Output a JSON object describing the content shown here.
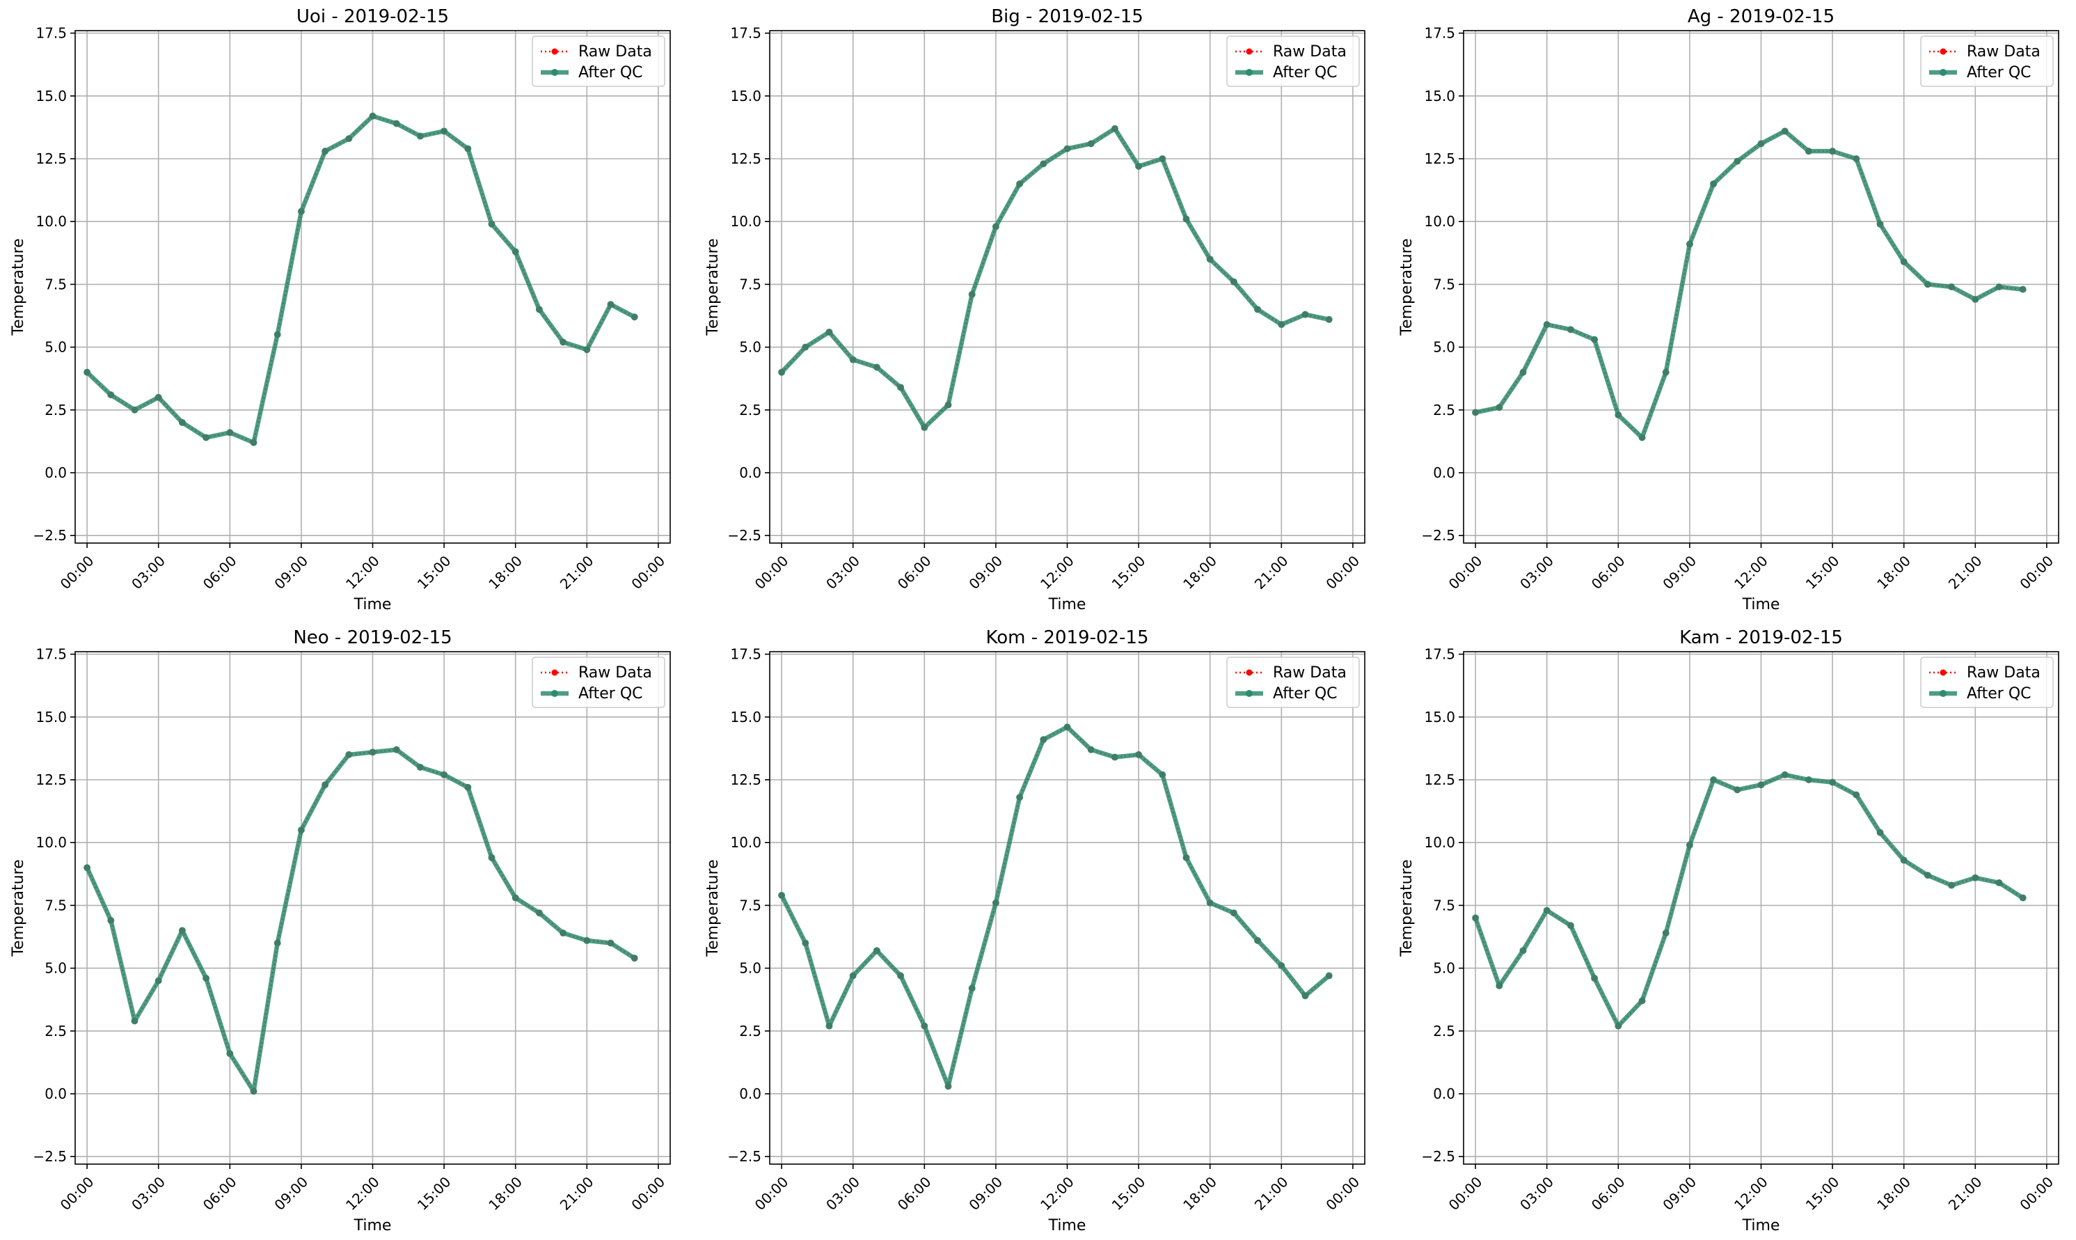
{
  "figure": {
    "background": "#ffffff"
  },
  "colors": {
    "raw": "#ff0000",
    "qc": "#2e8b6e",
    "grid": "#b0b0b0",
    "axis": "#000000"
  },
  "legend": {
    "placement": "upper-right",
    "entries": [
      "Raw Data",
      "After QC"
    ]
  },
  "chart_data": [
    {
      "type": "line",
      "title": "Uoi - 2019-02-15",
      "xlabel": "Time",
      "ylabel": "Temperature",
      "xlim": [
        -0.5,
        24.5
      ],
      "ylim": [
        -2.8,
        17.6
      ],
      "grid": true,
      "xticks": [
        0,
        3,
        6,
        9,
        12,
        15,
        18,
        21,
        24
      ],
      "xticklabels": [
        "00:00",
        "03:00",
        "06:00",
        "09:00",
        "12:00",
        "15:00",
        "18:00",
        "21:00",
        "00:00"
      ],
      "yticks": [
        -2.5,
        0,
        2.5,
        5,
        7.5,
        10,
        12.5,
        15,
        17.5
      ],
      "yticklabels": [
        "−2.5",
        "0.0",
        "2.5",
        "5.0",
        "7.5",
        "10.0",
        "12.5",
        "15.0",
        "17.5"
      ],
      "x": [
        0,
        1,
        2,
        3,
        4,
        5,
        6,
        7,
        8,
        9,
        10,
        11,
        12,
        13,
        14,
        15,
        16,
        17,
        18,
        19,
        20,
        21,
        22,
        23
      ],
      "series": [
        {
          "name": "Raw Data",
          "style": "dotted",
          "values": [
            4.0,
            3.1,
            2.5,
            3.0,
            2.0,
            1.4,
            1.6,
            1.2,
            5.5,
            10.4,
            12.8,
            13.3,
            14.2,
            13.9,
            13.4,
            13.6,
            12.9,
            9.9,
            8.8,
            6.5,
            5.2,
            4.9,
            6.7,
            6.2
          ]
        },
        {
          "name": "After QC",
          "style": "solid",
          "values": [
            4.0,
            3.1,
            2.5,
            3.0,
            2.0,
            1.4,
            1.6,
            1.2,
            5.5,
            10.4,
            12.8,
            13.3,
            14.2,
            13.9,
            13.4,
            13.6,
            12.9,
            9.9,
            8.8,
            6.5,
            5.2,
            4.9,
            6.7,
            6.2
          ]
        }
      ]
    },
    {
      "type": "line",
      "title": "Big - 2019-02-15",
      "xlabel": "Time",
      "ylabel": "Temperature",
      "xlim": [
        -0.5,
        24.5
      ],
      "ylim": [
        -2.8,
        17.6
      ],
      "grid": true,
      "xticks": [
        0,
        3,
        6,
        9,
        12,
        15,
        18,
        21,
        24
      ],
      "xticklabels": [
        "00:00",
        "03:00",
        "06:00",
        "09:00",
        "12:00",
        "15:00",
        "18:00",
        "21:00",
        "00:00"
      ],
      "yticks": [
        -2.5,
        0,
        2.5,
        5,
        7.5,
        10,
        12.5,
        15,
        17.5
      ],
      "yticklabels": [
        "−2.5",
        "0.0",
        "2.5",
        "5.0",
        "7.5",
        "10.0",
        "12.5",
        "15.0",
        "17.5"
      ],
      "x": [
        0,
        1,
        2,
        3,
        4,
        5,
        6,
        7,
        8,
        9,
        10,
        11,
        12,
        13,
        14,
        15,
        16,
        17,
        18,
        19,
        20,
        21,
        22,
        23
      ],
      "series": [
        {
          "name": "Raw Data",
          "style": "dotted",
          "values": [
            4.0,
            5.0,
            5.6,
            4.5,
            4.2,
            3.4,
            1.8,
            2.7,
            7.1,
            9.8,
            11.5,
            12.3,
            12.9,
            13.1,
            13.7,
            12.2,
            12.5,
            10.1,
            8.5,
            7.6,
            6.5,
            5.9,
            6.3,
            6.1
          ]
        },
        {
          "name": "After QC",
          "style": "solid",
          "values": [
            4.0,
            5.0,
            5.6,
            4.5,
            4.2,
            3.4,
            1.8,
            2.7,
            7.1,
            9.8,
            11.5,
            12.3,
            12.9,
            13.1,
            13.7,
            12.2,
            12.5,
            10.1,
            8.5,
            7.6,
            6.5,
            5.9,
            6.3,
            6.1
          ]
        }
      ]
    },
    {
      "type": "line",
      "title": "Ag - 2019-02-15",
      "xlabel": "Time",
      "ylabel": "Temperature",
      "xlim": [
        -0.5,
        24.5
      ],
      "ylim": [
        -2.8,
        17.6
      ],
      "grid": true,
      "xticks": [
        0,
        3,
        6,
        9,
        12,
        15,
        18,
        21,
        24
      ],
      "xticklabels": [
        "00:00",
        "03:00",
        "06:00",
        "09:00",
        "12:00",
        "15:00",
        "18:00",
        "21:00",
        "00:00"
      ],
      "yticks": [
        -2.5,
        0,
        2.5,
        5,
        7.5,
        10,
        12.5,
        15,
        17.5
      ],
      "yticklabels": [
        "−2.5",
        "0.0",
        "2.5",
        "5.0",
        "7.5",
        "10.0",
        "12.5",
        "15.0",
        "17.5"
      ],
      "x": [
        0,
        1,
        2,
        3,
        4,
        5,
        6,
        7,
        8,
        9,
        10,
        11,
        12,
        13,
        14,
        15,
        16,
        17,
        18,
        19,
        20,
        21,
        22,
        23
      ],
      "series": [
        {
          "name": "Raw Data",
          "style": "dotted",
          "values": [
            2.4,
            2.6,
            4.0,
            5.9,
            5.7,
            5.3,
            2.3,
            1.4,
            4.0,
            9.1,
            11.5,
            12.4,
            13.1,
            13.6,
            12.8,
            12.8,
            12.5,
            9.9,
            8.4,
            7.5,
            7.4,
            6.9,
            7.4,
            7.3
          ]
        },
        {
          "name": "After QC",
          "style": "solid",
          "values": [
            2.4,
            2.6,
            4.0,
            5.9,
            5.7,
            5.3,
            2.3,
            1.4,
            4.0,
            9.1,
            11.5,
            12.4,
            13.1,
            13.6,
            12.8,
            12.8,
            12.5,
            9.9,
            8.4,
            7.5,
            7.4,
            6.9,
            7.4,
            7.3
          ]
        }
      ]
    },
    {
      "type": "line",
      "title": "Neo - 2019-02-15",
      "xlabel": "Time",
      "ylabel": "Temperature",
      "xlim": [
        -0.5,
        24.5
      ],
      "ylim": [
        -2.8,
        17.6
      ],
      "grid": true,
      "xticks": [
        0,
        3,
        6,
        9,
        12,
        15,
        18,
        21,
        24
      ],
      "xticklabels": [
        "00:00",
        "03:00",
        "06:00",
        "09:00",
        "12:00",
        "15:00",
        "18:00",
        "21:00",
        "00:00"
      ],
      "yticks": [
        -2.5,
        0,
        2.5,
        5,
        7.5,
        10,
        12.5,
        15,
        17.5
      ],
      "yticklabels": [
        "−2.5",
        "0.0",
        "2.5",
        "5.0",
        "7.5",
        "10.0",
        "12.5",
        "15.0",
        "17.5"
      ],
      "x": [
        0,
        1,
        2,
        3,
        4,
        5,
        6,
        7,
        8,
        9,
        10,
        11,
        12,
        13,
        14,
        15,
        16,
        17,
        18,
        19,
        20,
        21,
        22,
        23
      ],
      "series": [
        {
          "name": "Raw Data",
          "style": "dotted",
          "values": [
            9.0,
            6.9,
            2.9,
            4.5,
            6.5,
            4.6,
            1.6,
            0.1,
            6.0,
            10.5,
            12.3,
            13.5,
            13.6,
            13.7,
            13.0,
            12.7,
            12.2,
            9.4,
            7.8,
            7.2,
            6.4,
            6.1,
            6.0,
            5.4
          ]
        },
        {
          "name": "After QC",
          "style": "solid",
          "values": [
            9.0,
            6.9,
            2.9,
            4.5,
            6.5,
            4.6,
            1.6,
            0.1,
            6.0,
            10.5,
            12.3,
            13.5,
            13.6,
            13.7,
            13.0,
            12.7,
            12.2,
            9.4,
            7.8,
            7.2,
            6.4,
            6.1,
            6.0,
            5.4
          ]
        }
      ]
    },
    {
      "type": "line",
      "title": "Kom - 2019-02-15",
      "xlabel": "Time",
      "ylabel": "Temperature",
      "xlim": [
        -0.5,
        24.5
      ],
      "ylim": [
        -2.8,
        17.6
      ],
      "grid": true,
      "xticks": [
        0,
        3,
        6,
        9,
        12,
        15,
        18,
        21,
        24
      ],
      "xticklabels": [
        "00:00",
        "03:00",
        "06:00",
        "09:00",
        "12:00",
        "15:00",
        "18:00",
        "21:00",
        "00:00"
      ],
      "yticks": [
        -2.5,
        0,
        2.5,
        5,
        7.5,
        10,
        12.5,
        15,
        17.5
      ],
      "yticklabels": [
        "−2.5",
        "0.0",
        "2.5",
        "5.0",
        "7.5",
        "10.0",
        "12.5",
        "15.0",
        "17.5"
      ],
      "x": [
        0,
        1,
        2,
        3,
        4,
        5,
        6,
        7,
        8,
        9,
        10,
        11,
        12,
        13,
        14,
        15,
        16,
        17,
        18,
        19,
        20,
        21,
        22,
        23
      ],
      "series": [
        {
          "name": "Raw Data",
          "style": "dotted",
          "values": [
            7.9,
            6.0,
            2.7,
            4.7,
            5.7,
            4.7,
            2.7,
            0.3,
            4.2,
            7.6,
            11.8,
            14.1,
            14.6,
            13.7,
            13.4,
            13.5,
            12.7,
            9.4,
            7.6,
            7.2,
            6.1,
            5.1,
            3.9,
            4.7
          ]
        },
        {
          "name": "After QC",
          "style": "solid",
          "values": [
            7.9,
            6.0,
            2.7,
            4.7,
            5.7,
            4.7,
            2.7,
            0.3,
            4.2,
            7.6,
            11.8,
            14.1,
            14.6,
            13.7,
            13.4,
            13.5,
            12.7,
            9.4,
            7.6,
            7.2,
            6.1,
            5.1,
            3.9,
            4.7
          ]
        }
      ]
    },
    {
      "type": "line",
      "title": "Kam - 2019-02-15",
      "xlabel": "Time",
      "ylabel": "Temperature",
      "xlim": [
        -0.5,
        24.5
      ],
      "ylim": [
        -2.8,
        17.6
      ],
      "grid": true,
      "xticks": [
        0,
        3,
        6,
        9,
        12,
        15,
        18,
        21,
        24
      ],
      "xticklabels": [
        "00:00",
        "03:00",
        "06:00",
        "09:00",
        "12:00",
        "15:00",
        "18:00",
        "21:00",
        "00:00"
      ],
      "yticks": [
        -2.5,
        0,
        2.5,
        5,
        7.5,
        10,
        12.5,
        15,
        17.5
      ],
      "yticklabels": [
        "−2.5",
        "0.0",
        "2.5",
        "5.0",
        "7.5",
        "10.0",
        "12.5",
        "15.0",
        "17.5"
      ],
      "x": [
        0,
        1,
        2,
        3,
        4,
        5,
        6,
        7,
        8,
        9,
        10,
        11,
        12,
        13,
        14,
        15,
        16,
        17,
        18,
        19,
        20,
        21,
        22,
        23
      ],
      "series": [
        {
          "name": "Raw Data",
          "style": "dotted",
          "values": [
            7.0,
            4.3,
            5.7,
            7.3,
            6.7,
            4.6,
            2.7,
            3.7,
            6.4,
            9.9,
            12.5,
            12.1,
            12.3,
            12.7,
            12.5,
            12.4,
            11.9,
            10.4,
            9.3,
            8.7,
            8.3,
            8.6,
            8.4,
            7.8
          ]
        },
        {
          "name": "After QC",
          "style": "solid",
          "values": [
            7.0,
            4.3,
            5.7,
            7.3,
            6.7,
            4.6,
            2.7,
            3.7,
            6.4,
            9.9,
            12.5,
            12.1,
            12.3,
            12.7,
            12.5,
            12.4,
            11.9,
            10.4,
            9.3,
            8.7,
            8.3,
            8.6,
            8.4,
            7.8
          ]
        }
      ]
    }
  ]
}
